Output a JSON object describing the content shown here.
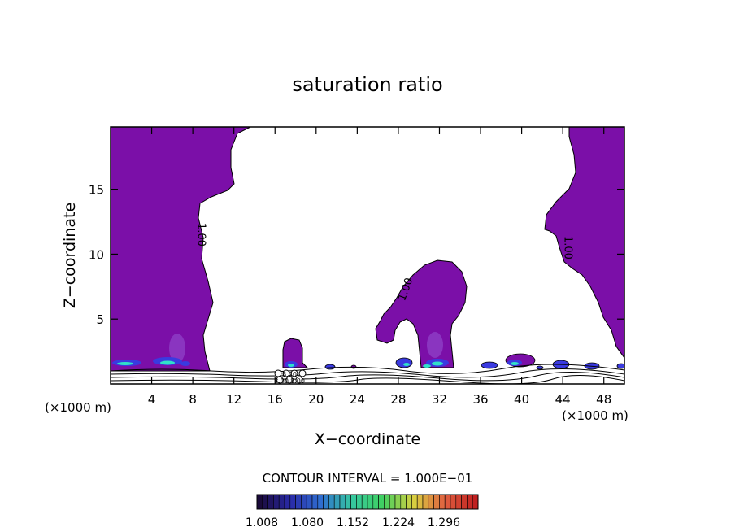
{
  "chart_data": {
    "type": "contour",
    "title": "saturation ratio",
    "xlabel": "X−coordinate",
    "ylabel": "Z−coordinate",
    "x_unit_left": "(×1000 m)",
    "x_unit_right": "(×1000 m)",
    "xlim": [
      0,
      50
    ],
    "ylim": [
      0,
      19.8
    ],
    "x_ticks": [
      4,
      8,
      12,
      16,
      20,
      24,
      28,
      32,
      36,
      40,
      44,
      48
    ],
    "y_ticks": [
      5,
      10,
      15
    ],
    "contour_labels": [
      {
        "text": "1.00",
        "x": 8.5,
        "y": 11.5
      },
      {
        "text": "1.00",
        "x": 29.0,
        "y": 7.2
      },
      {
        "text": "1.00",
        "x": 44.2,
        "y": 10.5
      }
    ],
    "small_labels": [
      "8.20",
      "8.00",
      "8.00"
    ],
    "contour_interval_text": "CONTOUR INTERVAL = 1.000E−01",
    "colorbar": {
      "labels": [
        "1.008",
        "1.080",
        "1.152",
        "1.224",
        "1.296"
      ],
      "stops": [
        "#1a0a3a",
        "#2a2aa8",
        "#2f6fd0",
        "#36c8a0",
        "#3fd060",
        "#d8d040",
        "#e06040",
        "#c02020"
      ],
      "segments": 40
    },
    "colors": {
      "fill": "#7b0fa8",
      "blue": "#3a3ae0",
      "cyan": "#30e0c8",
      "outline": "#000000"
    }
  }
}
